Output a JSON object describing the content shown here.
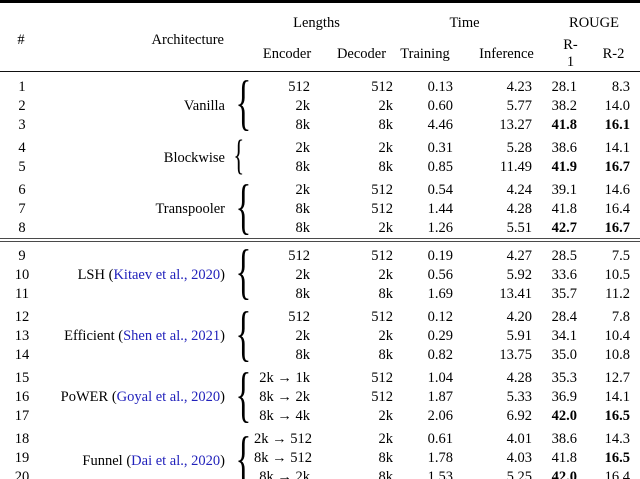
{
  "table": {
    "colors": {
      "citation_blue": "#2222bb"
    },
    "headers": {
      "num": "#",
      "architecture": "Architecture",
      "lengths": "Lengths",
      "encoder": "Encoder",
      "decoder": "Decoder",
      "time": "Time",
      "training": "Training",
      "inference": "Inference",
      "rouge": "ROUGE",
      "r1": "R-1",
      "r2": "R-2"
    },
    "groups": [
      {
        "name": "Vanilla",
        "citation": null,
        "rows": [
          {
            "num": "1",
            "enc": "512",
            "dec": "512",
            "train": "0.13",
            "inf": "4.23",
            "r1": "28.1",
            "r2": "8.3",
            "r1_bold": false,
            "r2_bold": false
          },
          {
            "num": "2",
            "enc": "2k",
            "dec": "2k",
            "train": "0.60",
            "inf": "5.77",
            "r1": "38.2",
            "r2": "14.0",
            "r1_bold": false,
            "r2_bold": false
          },
          {
            "num": "3",
            "enc": "8k",
            "dec": "8k",
            "train": "4.46",
            "inf": "13.27",
            "r1": "41.8",
            "r2": "16.1",
            "r1_bold": true,
            "r2_bold": true
          }
        ]
      },
      {
        "name": "Blockwise",
        "citation": null,
        "rows": [
          {
            "num": "4",
            "enc": "2k",
            "dec": "2k",
            "train": "0.31",
            "inf": "5.28",
            "r1": "38.6",
            "r2": "14.1",
            "r1_bold": false,
            "r2_bold": false
          },
          {
            "num": "5",
            "enc": "8k",
            "dec": "8k",
            "train": "0.85",
            "inf": "11.49",
            "r1": "41.9",
            "r2": "16.7",
            "r1_bold": true,
            "r2_bold": true
          }
        ]
      },
      {
        "name": "Transpooler",
        "citation": null,
        "rows": [
          {
            "num": "6",
            "enc": "2k",
            "dec": "512",
            "train": "0.54",
            "inf": "4.24",
            "r1": "39.1",
            "r2": "14.6",
            "r1_bold": false,
            "r2_bold": false
          },
          {
            "num": "7",
            "enc": "8k",
            "dec": "512",
            "train": "1.44",
            "inf": "4.28",
            "r1": "41.8",
            "r2": "16.4",
            "r1_bold": false,
            "r2_bold": false
          },
          {
            "num": "8",
            "enc": "8k",
            "dec": "2k",
            "train": "1.26",
            "inf": "5.51",
            "r1": "42.7",
            "r2": "16.7",
            "r1_bold": true,
            "r2_bold": true
          }
        ]
      },
      {
        "name": "LSH",
        "citation": "Kitaev et al., 2020",
        "double_rule_before": true,
        "rows": [
          {
            "num": "9",
            "enc": "512",
            "dec": "512",
            "train": "0.19",
            "inf": "4.27",
            "r1": "28.5",
            "r2": "7.5",
            "r1_bold": false,
            "r2_bold": false
          },
          {
            "num": "10",
            "enc": "2k",
            "dec": "2k",
            "train": "0.56",
            "inf": "5.92",
            "r1": "33.6",
            "r2": "10.5",
            "r1_bold": false,
            "r2_bold": false
          },
          {
            "num": "11",
            "enc": "8k",
            "dec": "8k",
            "train": "1.69",
            "inf": "13.41",
            "r1": "35.7",
            "r2": "11.2",
            "r1_bold": false,
            "r2_bold": false
          }
        ]
      },
      {
        "name": "Efficient",
        "citation": "Shen et al., 2021",
        "rows": [
          {
            "num": "12",
            "enc": "512",
            "dec": "512",
            "train": "0.12",
            "inf": "4.20",
            "r1": "28.4",
            "r2": "7.8",
            "r1_bold": false,
            "r2_bold": false
          },
          {
            "num": "13",
            "enc": "2k",
            "dec": "2k",
            "train": "0.29",
            "inf": "5.91",
            "r1": "34.1",
            "r2": "10.4",
            "r1_bold": false,
            "r2_bold": false
          },
          {
            "num": "14",
            "enc": "8k",
            "dec": "8k",
            "train": "0.82",
            "inf": "13.75",
            "r1": "35.0",
            "r2": "10.8",
            "r1_bold": false,
            "r2_bold": false
          }
        ]
      },
      {
        "name": "PoWER",
        "citation": "Goyal et al., 2020",
        "rows": [
          {
            "num": "15",
            "enc": "2k → 1k",
            "dec": "512",
            "train": "1.04",
            "inf": "4.28",
            "r1": "35.3",
            "r2": "12.7",
            "r1_bold": false,
            "r2_bold": false
          },
          {
            "num": "16",
            "enc": "8k → 2k",
            "dec": "512",
            "train": "1.87",
            "inf": "5.33",
            "r1": "36.9",
            "r2": "14.1",
            "r1_bold": false,
            "r2_bold": false
          },
          {
            "num": "17",
            "enc": "8k → 4k",
            "dec": "2k",
            "train": "2.06",
            "inf": "6.92",
            "r1": "42.0",
            "r2": "16.5",
            "r1_bold": true,
            "r2_bold": true
          }
        ]
      },
      {
        "name": "Funnel",
        "citation": "Dai et al., 2020",
        "rows": [
          {
            "num": "18",
            "enc": "2k → 512",
            "dec": "2k",
            "train": "0.61",
            "inf": "4.01",
            "r1": "38.6",
            "r2": "14.3",
            "r1_bold": false,
            "r2_bold": false
          },
          {
            "num": "19",
            "enc": "8k → 512",
            "dec": "8k",
            "train": "1.78",
            "inf": "4.03",
            "r1": "41.8",
            "r2": "16.5",
            "r1_bold": false,
            "r2_bold": true
          },
          {
            "num": "20",
            "enc": "8k → 2k",
            "dec": "8k",
            "train": "1.53",
            "inf": "5.25",
            "r1": "42.0",
            "r2": "16.4",
            "r1_bold": true,
            "r2_bold": false
          }
        ]
      }
    ]
  }
}
